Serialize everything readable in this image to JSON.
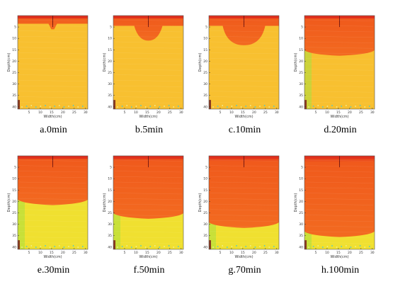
{
  "axes": {
    "xlabel": "Width(cm)",
    "ylabel": "Depth(cm)",
    "xticks": [
      "5",
      "10",
      "15",
      "20",
      "25",
      "30"
    ],
    "yticks": [
      "5",
      "10",
      "15",
      "20",
      "25",
      "30",
      "35",
      "40"
    ]
  },
  "colors": {
    "red": "#e0301c",
    "orange": "#f05a1c",
    "soil_yellow": "#f8c030",
    "wet_yellow": "#f0e030",
    "green_edge": "#a8e040"
  },
  "panels": [
    {
      "caption": "a.0min",
      "wet_depth_cm": 6
    },
    {
      "caption": "b.5min",
      "wet_depth_cm": 11
    },
    {
      "caption": "c.10min",
      "wet_depth_cm": 13
    },
    {
      "caption": "d.20min",
      "wet_depth_cm": 17
    },
    {
      "caption": "e.30min",
      "wet_depth_cm": 21
    },
    {
      "caption": "f.50min",
      "wet_depth_cm": 27
    },
    {
      "caption": "g.70min",
      "wet_depth_cm": 31
    },
    {
      "caption": "h.100min",
      "wet_depth_cm": 35
    }
  ]
}
